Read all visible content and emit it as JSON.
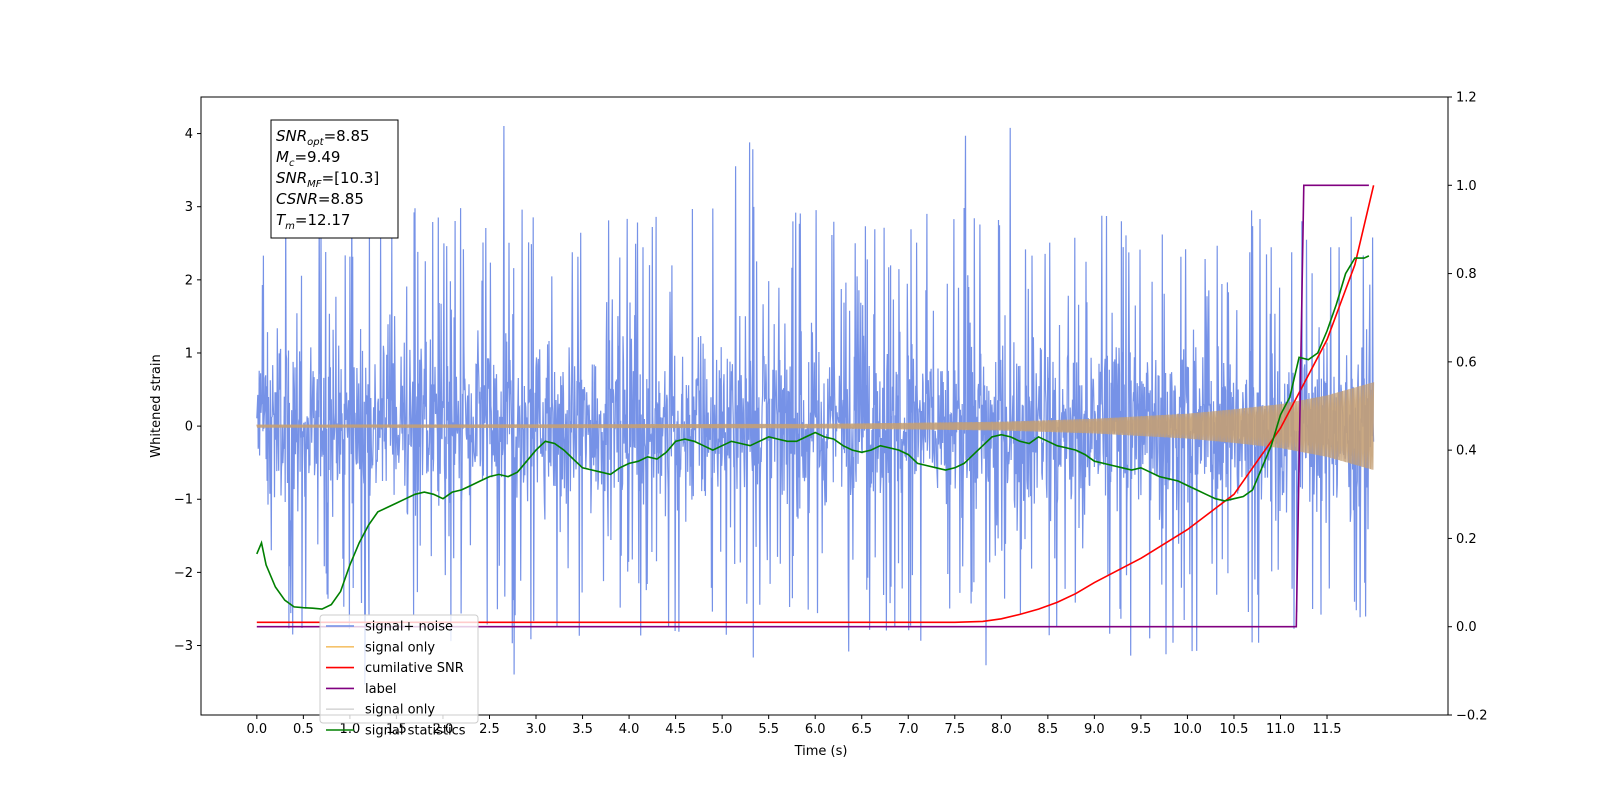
{
  "chart_data": {
    "type": "line",
    "xlabel": "Time (s)",
    "ylabel": "Whitened strain",
    "xlim": [
      -0.6,
      12.8
    ],
    "ylim": [
      -3.95,
      4.5
    ],
    "y2lim": [
      -0.2,
      1.2
    ],
    "x_ticks": [
      "0.0",
      "0.5",
      "1.0",
      "1.5",
      "2.0",
      "2.5",
      "3.0",
      "3.5",
      "4.0",
      "4.5",
      "5.0",
      "5.5",
      "6.0",
      "6.5",
      "7.0",
      "7.5",
      "8.0",
      "8.5",
      "9.0",
      "9.5",
      "10.0",
      "10.5",
      "11.0",
      "11.5"
    ],
    "y_ticks": [
      "−3",
      "−2",
      "−1",
      "0",
      "1",
      "2",
      "3",
      "4"
    ],
    "y2_ticks": [
      "−0.2",
      "0.0",
      "0.2",
      "0.4",
      "0.6",
      "0.8",
      "1.0",
      "1.2"
    ],
    "annotation": [
      {
        "main": "SNR",
        "sub": "opt",
        "rest": "=8.85"
      },
      {
        "main": "M",
        "sub": "c",
        "rest": "=9.49"
      },
      {
        "main": "SNR",
        "sub": "MF",
        "rest": "=[10.3]"
      },
      {
        "main": "CSNR",
        "sub": "",
        "rest": "=8.85"
      },
      {
        "main": "T",
        "sub": "m",
        "rest": "=12.17"
      }
    ],
    "legend": {
      "placement": "lower-left",
      "entries": [
        {
          "label": "signal+ noise",
          "color": "#6f8ce6"
        },
        {
          "label": "signal only",
          "color": "#f5c26b"
        },
        {
          "label": "cumilative SNR",
          "color": "#ff0000"
        },
        {
          "label": "label",
          "color": "#800080"
        },
        {
          "label": "signal only",
          "color": "#d8d8d8"
        },
        {
          "label": "signal statistics",
          "color": "#008000"
        }
      ]
    },
    "series": [
      {
        "name": "signal+ noise",
        "axis": "left",
        "color": "#6f8ce6",
        "kind": "noise",
        "t_range": [
          0.0,
          12.0
        ],
        "envelope": [
          -1.6,
          1.85
        ],
        "max_spike": 4.12,
        "min_spike": -3.55
      },
      {
        "name": "signal only",
        "axis": "left",
        "color": "#c4a076",
        "kind": "chirp",
        "t_range": [
          0.0,
          12.0
        ],
        "amplitude": {
          "t": [
            0.0,
            6.0,
            8.0,
            9.0,
            10.0,
            10.5,
            11.0,
            11.5,
            12.0
          ],
          "a": [
            0.02,
            0.03,
            0.06,
            0.1,
            0.17,
            0.23,
            0.3,
            0.42,
            0.6
          ]
        }
      },
      {
        "name": "cumilative SNR",
        "axis": "right",
        "color": "#ff0000",
        "x": [
          0.0,
          7.5,
          7.8,
          8.0,
          8.2,
          8.4,
          8.6,
          8.8,
          9.0,
          9.5,
          10.0,
          10.5,
          11.0,
          11.5,
          11.8,
          12.0
        ],
        "y": [
          0.01,
          0.01,
          0.012,
          0.018,
          0.028,
          0.04,
          0.055,
          0.075,
          0.1,
          0.155,
          0.22,
          0.3,
          0.45,
          0.65,
          0.82,
          1.0
        ]
      },
      {
        "name": "label",
        "axis": "right",
        "color": "#800080",
        "x": [
          0.0,
          11.17,
          11.25,
          11.95
        ],
        "y": [
          0.0,
          0.0,
          1.0,
          1.0
        ]
      },
      {
        "name": "signal statistics",
        "axis": "right",
        "color": "#008000",
        "x": [
          0.0,
          0.05,
          0.1,
          0.2,
          0.3,
          0.4,
          0.5,
          0.6,
          0.7,
          0.8,
          0.9,
          1.0,
          1.1,
          1.2,
          1.3,
          1.4,
          1.5,
          1.6,
          1.7,
          1.8,
          1.9,
          2.0,
          2.1,
          2.2,
          2.3,
          2.4,
          2.5,
          2.6,
          2.7,
          2.8,
          2.9,
          3.0,
          3.1,
          3.2,
          3.3,
          3.4,
          3.5,
          3.6,
          3.7,
          3.8,
          3.9,
          4.0,
          4.1,
          4.2,
          4.3,
          4.4,
          4.5,
          4.6,
          4.7,
          4.8,
          4.9,
          5.0,
          5.1,
          5.2,
          5.3,
          5.4,
          5.5,
          5.6,
          5.7,
          5.8,
          5.9,
          6.0,
          6.1,
          6.2,
          6.3,
          6.4,
          6.5,
          6.6,
          6.7,
          6.8,
          6.9,
          7.0,
          7.1,
          7.2,
          7.3,
          7.4,
          7.5,
          7.6,
          7.7,
          7.8,
          7.9,
          8.0,
          8.1,
          8.2,
          8.3,
          8.4,
          8.5,
          8.6,
          8.7,
          8.8,
          8.9,
          9.0,
          9.1,
          9.2,
          9.3,
          9.4,
          9.5,
          9.6,
          9.7,
          9.8,
          9.9,
          10.0,
          10.1,
          10.2,
          10.3,
          10.4,
          10.5,
          10.6,
          10.7,
          10.8,
          10.9,
          11.0,
          11.1,
          11.2,
          11.3,
          11.4,
          11.5,
          11.6,
          11.7,
          11.8,
          11.9,
          11.95
        ],
        "y": [
          0.165,
          0.19,
          0.14,
          0.09,
          0.06,
          0.045,
          0.043,
          0.042,
          0.04,
          0.05,
          0.08,
          0.14,
          0.19,
          0.23,
          0.26,
          0.27,
          0.28,
          0.29,
          0.3,
          0.305,
          0.3,
          0.29,
          0.305,
          0.31,
          0.32,
          0.33,
          0.34,
          0.345,
          0.34,
          0.35,
          0.375,
          0.4,
          0.42,
          0.415,
          0.4,
          0.38,
          0.36,
          0.355,
          0.35,
          0.345,
          0.36,
          0.37,
          0.375,
          0.385,
          0.38,
          0.395,
          0.42,
          0.425,
          0.42,
          0.41,
          0.4,
          0.41,
          0.42,
          0.415,
          0.41,
          0.42,
          0.43,
          0.425,
          0.42,
          0.42,
          0.43,
          0.44,
          0.43,
          0.425,
          0.41,
          0.4,
          0.395,
          0.4,
          0.41,
          0.405,
          0.4,
          0.39,
          0.37,
          0.365,
          0.36,
          0.355,
          0.36,
          0.37,
          0.39,
          0.41,
          0.43,
          0.435,
          0.43,
          0.42,
          0.415,
          0.43,
          0.42,
          0.41,
          0.405,
          0.4,
          0.39,
          0.375,
          0.37,
          0.365,
          0.36,
          0.355,
          0.36,
          0.35,
          0.34,
          0.335,
          0.33,
          0.32,
          0.31,
          0.3,
          0.29,
          0.285,
          0.29,
          0.295,
          0.31,
          0.36,
          0.41,
          0.48,
          0.52,
          0.61,
          0.605,
          0.62,
          0.67,
          0.73,
          0.8,
          0.835,
          0.835,
          0.84
        ]
      }
    ]
  }
}
